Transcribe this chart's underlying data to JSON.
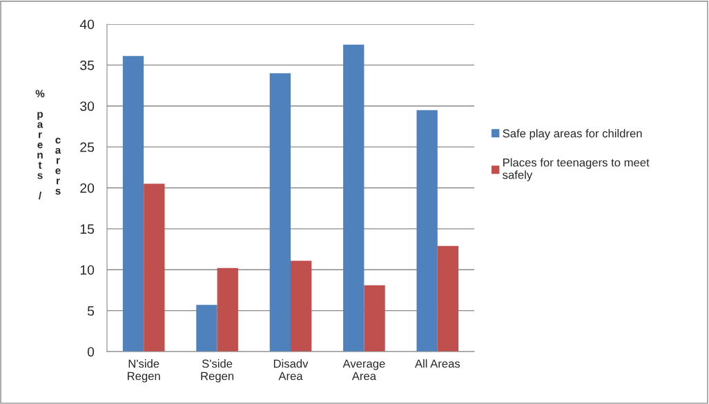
{
  "chart_data": {
    "type": "bar",
    "ylabel": "% parents / carers",
    "categories": [
      "N'side\nRegen",
      "S'side\nRegen",
      "Disadv\nArea",
      "Average\nArea",
      "All Areas"
    ],
    "series": [
      {
        "name": "Safe play areas for children",
        "color": "#4f81bd",
        "values": [
          36.1,
          5.7,
          34.0,
          37.5,
          29.5
        ]
      },
      {
        "name": "Places for teenagers to meet safely",
        "color": "#c0504d",
        "values": [
          20.5,
          10.2,
          11.1,
          8.1,
          12.9
        ]
      }
    ],
    "ylim": [
      0,
      40
    ],
    "yticks": [
      0,
      5,
      10,
      15,
      20,
      25,
      30,
      35,
      40
    ],
    "grid": "y",
    "legend": "right"
  }
}
